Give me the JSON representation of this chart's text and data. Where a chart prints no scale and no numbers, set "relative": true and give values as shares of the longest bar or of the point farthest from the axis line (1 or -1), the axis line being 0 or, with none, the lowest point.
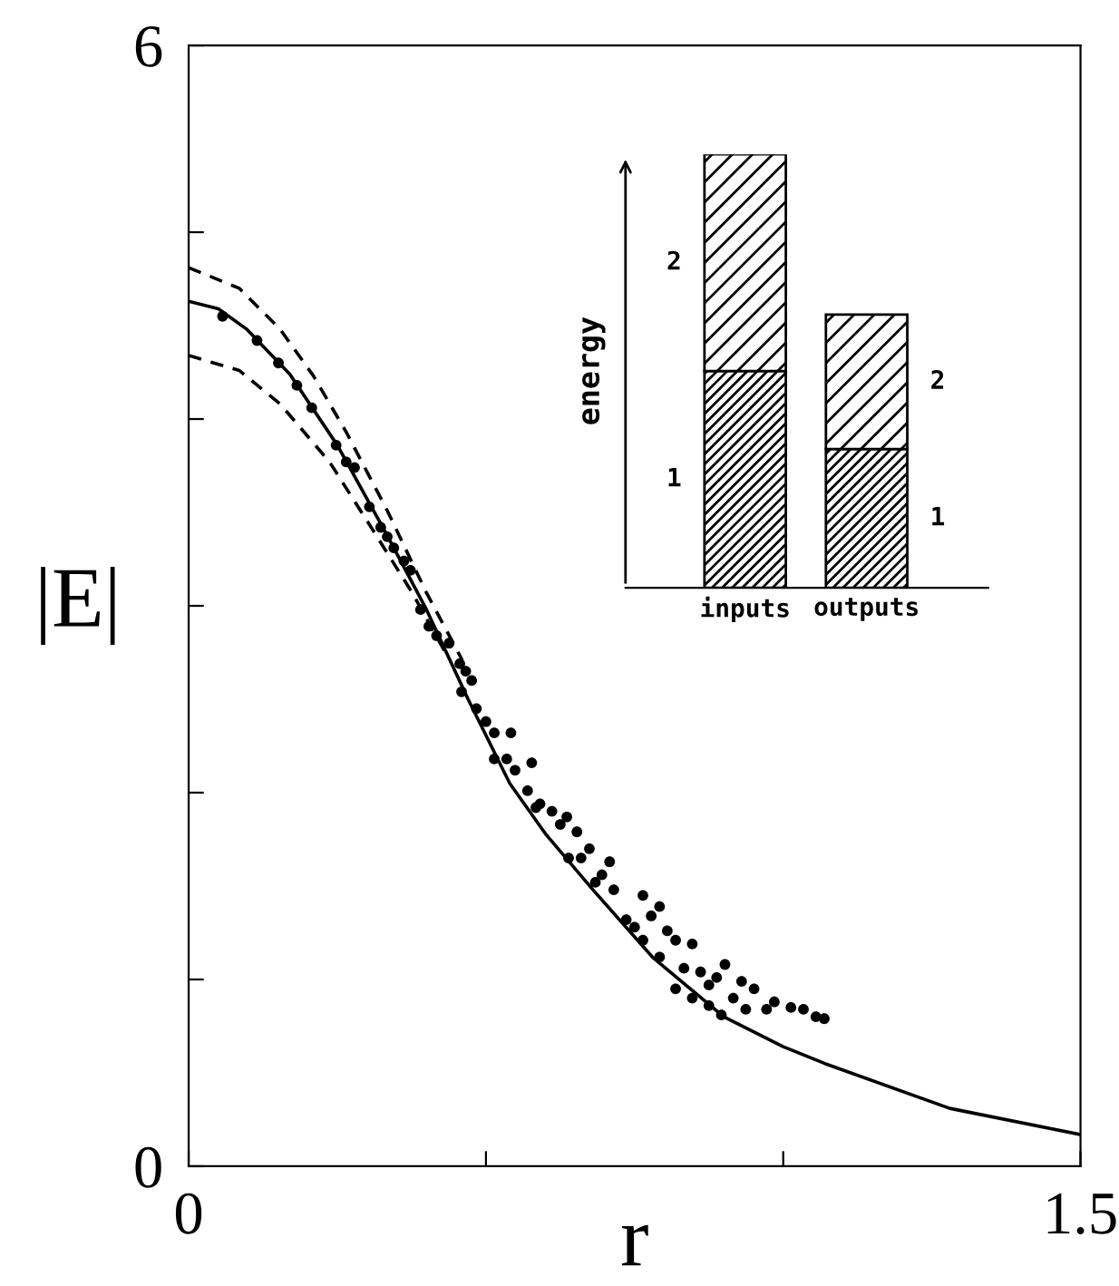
{
  "chart_data": [
    {
      "type": "line",
      "xlabel": "r",
      "ylabel": "|E|",
      "xlim": [
        0,
        1.5
      ],
      "ylim": [
        0,
        6
      ],
      "xticks": [
        0,
        {
          "value": 0.5,
          "label": null
        },
        {
          "value": 1.0,
          "label": null
        },
        1.5
      ],
      "yticks": [
        0,
        {
          "value": 1,
          "label": null
        },
        {
          "value": 2,
          "label": null
        },
        {
          "value": 3,
          "label": null
        },
        {
          "value": 4,
          "label": null
        },
        {
          "value": 5,
          "label": null
        },
        6
      ],
      "grid": false,
      "legend": false,
      "series": [
        {
          "type": "line",
          "color": "#000000",
          "line_style": "solid",
          "x": [
            0,
            0.05,
            0.098,
            0.17,
            0.25,
            0.33,
            0.4,
            0.47,
            0.54,
            0.6,
            0.68,
            0.78,
            0.9,
            1.0,
            1.07,
            1.28,
            1.5
          ],
          "values": [
            4.63,
            4.59,
            4.48,
            4.24,
            3.86,
            3.4,
            2.98,
            2.5,
            2.05,
            1.78,
            1.48,
            1.12,
            0.8,
            0.64,
            0.55,
            0.31,
            0.17
          ]
        },
        {
          "type": "line",
          "color": "#000000",
          "line_style": "dashed",
          "x": [
            0,
            0.085,
            0.154,
            0.21,
            0.265,
            0.334,
            0.4,
            0.46
          ],
          "values": [
            4.81,
            4.7,
            4.48,
            4.23,
            3.93,
            3.51,
            3.07,
            2.71
          ]
        },
        {
          "type": "line",
          "color": "#000000",
          "line_style": "dashed",
          "x": [
            0,
            0.085,
            0.154,
            0.237,
            0.307,
            0.376,
            0.43
          ],
          "values": [
            4.34,
            4.26,
            4.08,
            3.77,
            3.42,
            3.07,
            2.76
          ]
        },
        {
          "type": "scatter",
          "color": "#000000",
          "marker": "circle",
          "x": [
            0.057,
            0.115,
            0.151,
            0.182,
            0.207,
            0.248,
            0.265,
            0.279,
            0.304,
            0.323,
            0.334,
            0.345,
            0.362,
            0.373,
            0.39,
            0.404,
            0.417,
            0.438,
            0.456,
            0.466,
            0.476,
            0.484,
            0.5,
            0.514,
            0.542,
            0.535,
            0.549,
            0.57,
            0.577,
            0.591,
            0.611,
            0.625,
            0.636,
            0.653,
            0.66,
            0.674,
            0.684,
            0.695,
            0.708,
            0.715,
            0.736,
            0.75,
            0.764,
            0.778,
            0.792,
            0.805,
            0.819,
            0.833,
            0.847,
            0.861,
            0.875,
            0.888,
            0.902,
            0.916,
            0.93,
            0.937,
            0.951,
            0.972,
            0.985,
            1.013,
            1.034,
            1.055,
            1.069,
            0.764,
            0.792,
            0.819,
            0.847,
            0.875,
            0.896,
            0.639,
            0.514,
            0.459,
            0.584
          ],
          "values": [
            4.55,
            4.42,
            4.3,
            4.18,
            4.06,
            3.86,
            3.77,
            3.74,
            3.53,
            3.42,
            3.37,
            3.31,
            3.24,
            3.19,
            2.98,
            2.89,
            2.84,
            2.8,
            2.69,
            2.65,
            2.6,
            2.45,
            2.38,
            2.32,
            2.32,
            2.18,
            2.12,
            2.01,
            2.16,
            1.94,
            1.9,
            1.83,
            1.87,
            1.79,
            1.65,
            1.7,
            1.52,
            1.56,
            1.63,
            1.48,
            1.32,
            1.28,
            1.45,
            1.34,
            1.39,
            1.26,
            1.21,
            1.06,
            1.19,
            1.04,
            0.97,
            1.01,
            1.08,
            0.9,
            0.99,
            0.84,
            0.95,
            0.84,
            0.88,
            0.85,
            0.84,
            0.8,
            0.79,
            1.21,
            1.12,
            0.95,
            0.9,
            0.86,
            0.81,
            1.65,
            2.18,
            2.54,
            1.92
          ]
        }
      ]
    },
    {
      "type": "bar",
      "stacked": true,
      "relative": true,
      "ylabel": "energy",
      "categories": [
        "inputs",
        "outputs"
      ],
      "legend": false,
      "series": [
        {
          "name": "1",
          "color": "#000000",
          "values": [
            0.5,
            0.32
          ]
        },
        {
          "name": "2",
          "color": "#000000",
          "values": [
            0.5,
            0.31
          ]
        }
      ]
    }
  ]
}
